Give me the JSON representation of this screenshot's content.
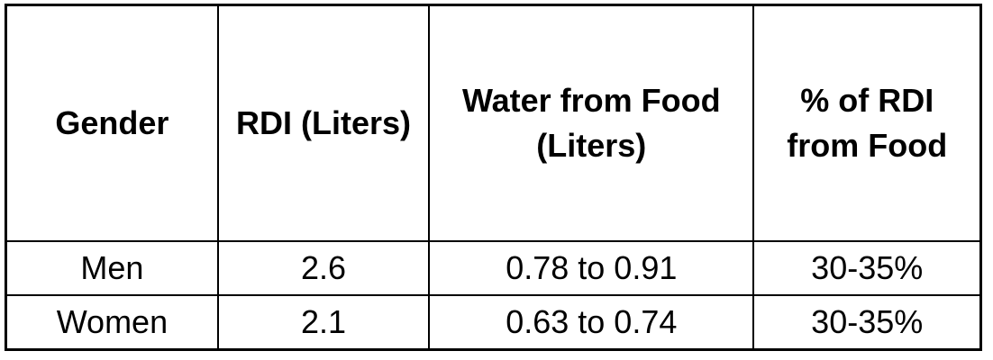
{
  "table": {
    "headers": [
      "Gender",
      "RDI (Liters)",
      "Water from Food (Liters)",
      "% of RDI from Food"
    ],
    "rows": [
      [
        "Men",
        "2.6",
        "0.78 to 0.91",
        "30-35%"
      ],
      [
        "Women",
        "2.1",
        "0.63 to 0.74",
        "30-35%"
      ]
    ]
  }
}
